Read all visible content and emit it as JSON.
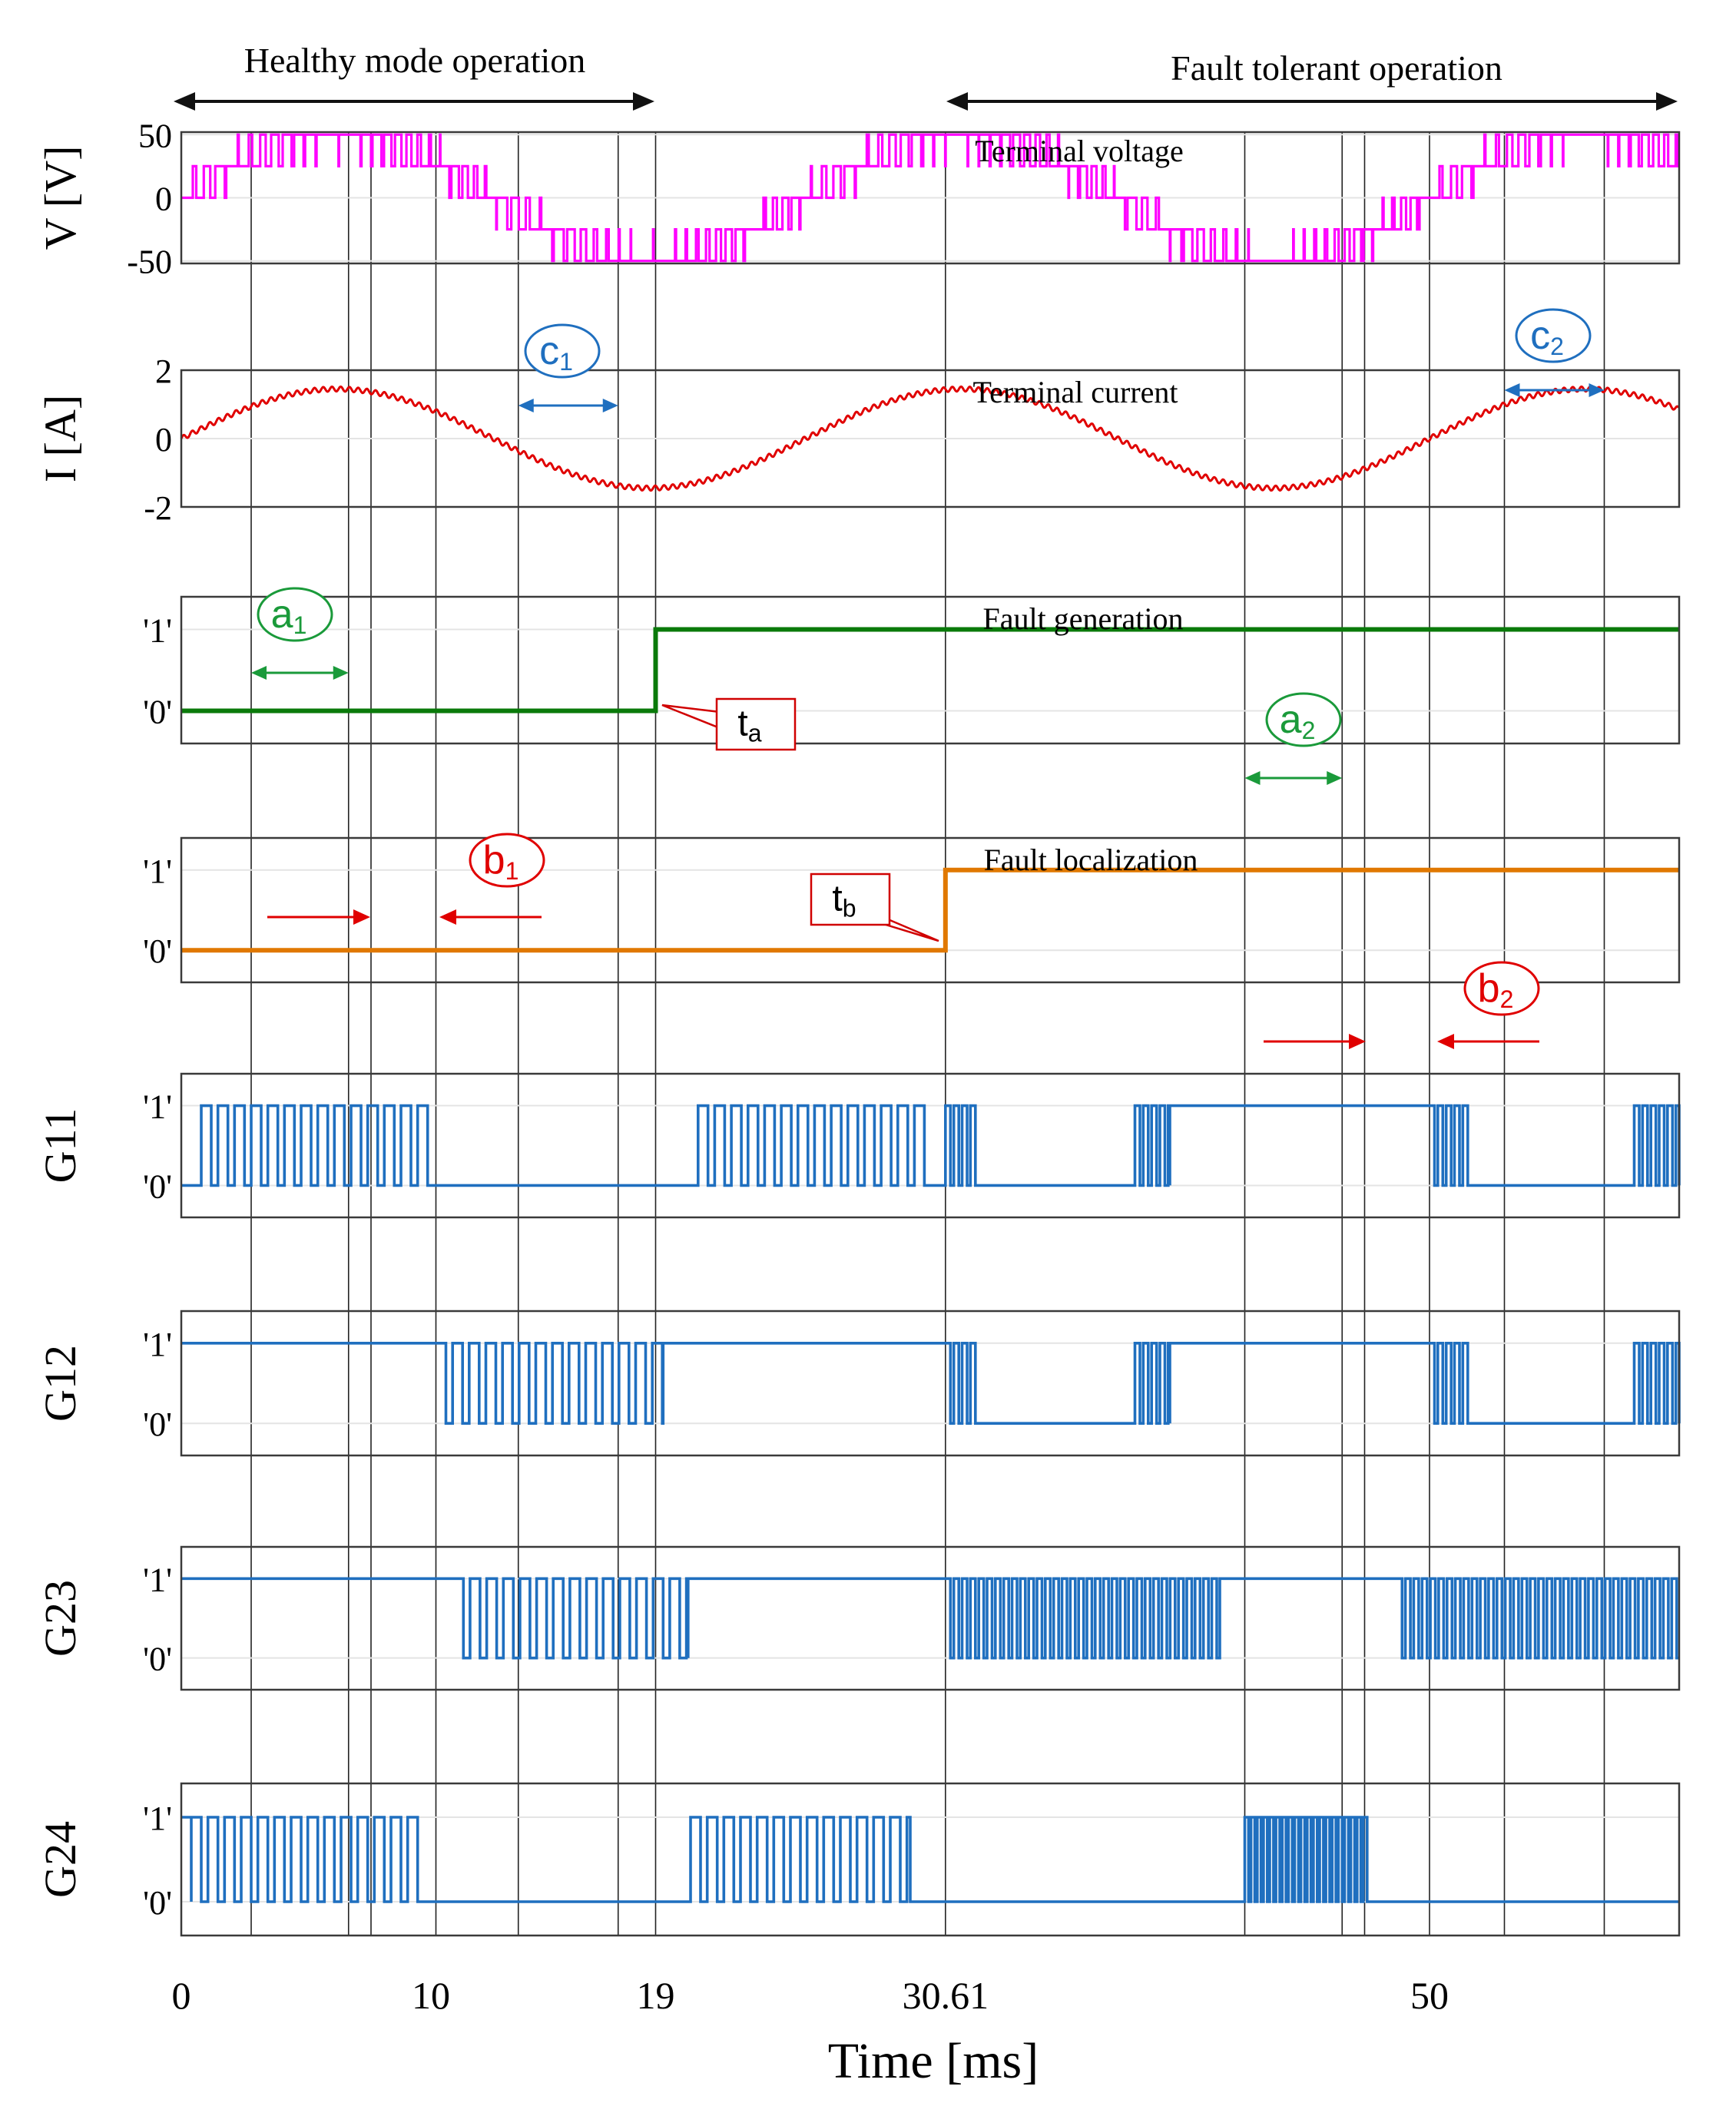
{
  "chart_data": {
    "type": "line",
    "xlabel": "Time [ms]",
    "xlim": [
      0,
      60
    ],
    "xticks": [
      0,
      10,
      19,
      30.61,
      50
    ],
    "xtick_labels": [
      "0",
      "10",
      "19",
      "30.61",
      "50"
    ],
    "vertical_markers_ms": [
      2.8,
      6.7,
      7.6,
      10.2,
      13.5,
      17.5,
      19,
      30.61,
      42.6,
      46.5,
      47.4,
      50,
      53,
      57
    ],
    "regions": [
      {
        "label": "Healthy mode operation",
        "from": 0,
        "to": 19
      },
      {
        "label": "Fault tolerant operation",
        "from": 30.61,
        "to": 60
      }
    ],
    "panels": [
      {
        "id": "voltage",
        "ylabel": "V [V]",
        "title": "Terminal voltage",
        "ylim": [
          -52,
          52
        ],
        "yticks": [
          50,
          0,
          -50
        ],
        "ytick_labels": [
          "50",
          "0",
          "-50"
        ],
        "color": "#ff00ff",
        "kind": "multilevel",
        "levels": [
          25,
          50
        ],
        "frequency_hz": 40,
        "amplitude_v": 50
      },
      {
        "id": "current",
        "ylabel": "I [A]",
        "title": "Terminal current",
        "ylim": [
          -2,
          2
        ],
        "yticks": [
          2,
          0,
          -2
        ],
        "ytick_labels": [
          "2",
          "0",
          "-2"
        ],
        "color": "#e00000",
        "kind": "sine",
        "amplitude_a": 1.45,
        "frequency_hz": 40,
        "ripple_a": 0.07
      },
      {
        "id": "fault_generation",
        "title": "Fault generation",
        "ylim": [
          -0.4,
          1.4
        ],
        "yticks": [
          1,
          0
        ],
        "ytick_labels": [
          "'1'",
          "'0'"
        ],
        "color": "#0a7a0a",
        "kind": "step",
        "step_time_ms": 19
      },
      {
        "id": "fault_localization",
        "title": "Fault localization",
        "ylim": [
          -0.4,
          1.4
        ],
        "yticks": [
          1,
          0
        ],
        "ytick_labels": [
          "'1'",
          "'0'"
        ],
        "color": "#e07800",
        "kind": "step",
        "step_time_ms": 30.61
      },
      {
        "id": "G11",
        "ylabel": "G11",
        "ylim": [
          -0.4,
          1.4
        ],
        "yticks": [
          1,
          0
        ],
        "ytick_labels": [
          "'1'",
          "'0'"
        ],
        "color": "#1f6fbf",
        "kind": "gate",
        "segments": [
          [
            0,
            0.8,
            0
          ],
          [
            0.8,
            10.1,
            1.5
          ],
          [
            10.1,
            20.7,
            0
          ],
          [
            20.7,
            29.8,
            1.5
          ],
          [
            29.8,
            30.61,
            0
          ],
          [
            30.61,
            31.9,
            3
          ],
          [
            31.9,
            38.2,
            0
          ],
          [
            38.2,
            39.6,
            3
          ],
          [
            39.6,
            50,
            1
          ],
          [
            50,
            51.6,
            3
          ],
          [
            51.6,
            58.2,
            0
          ],
          [
            58.2,
            60,
            3
          ]
        ]
      },
      {
        "id": "G12",
        "ylabel": "G12",
        "ylim": [
          -0.4,
          1.4
        ],
        "yticks": [
          1,
          0
        ],
        "ytick_labels": [
          "'1'",
          "'0'"
        ],
        "color": "#1f6fbf",
        "kind": "gate",
        "segments": [
          [
            0,
            10.2,
            1
          ],
          [
            10.2,
            19.3,
            1.5
          ],
          [
            19.3,
            30.61,
            1
          ],
          [
            30.61,
            31.9,
            3
          ],
          [
            31.9,
            38.2,
            0
          ],
          [
            38.2,
            39.6,
            3
          ],
          [
            39.6,
            50,
            1
          ],
          [
            50,
            51.6,
            3
          ],
          [
            51.6,
            58.2,
            0
          ],
          [
            58.2,
            60,
            3
          ]
        ]
      },
      {
        "id": "G23",
        "ylabel": "G23",
        "ylim": [
          -0.4,
          1.4
        ],
        "yticks": [
          1,
          0
        ],
        "ytick_labels": [
          "'1'",
          "'0'"
        ],
        "color": "#1f6fbf",
        "kind": "gate",
        "segments": [
          [
            0,
            10.9,
            1
          ],
          [
            10.9,
            20.3,
            1.5
          ],
          [
            20.3,
            30.61,
            1
          ],
          [
            30.61,
            41.6,
            3
          ],
          [
            41.6,
            48.7,
            1
          ],
          [
            48.7,
            60,
            3
          ]
        ]
      },
      {
        "id": "G24",
        "ylabel": "G24",
        "ylim": [
          -0.4,
          1.4
        ],
        "yticks": [
          1,
          0
        ],
        "ytick_labels": [
          "'1'",
          "'0'"
        ],
        "color": "#1f6fbf",
        "kind": "gate",
        "segments": [
          [
            0,
            0.4,
            1.5
          ],
          [
            0.4,
            9.6,
            1.5
          ],
          [
            9.6,
            20.4,
            0
          ],
          [
            20.4,
            29.2,
            1.5
          ],
          [
            29.2,
            42.6,
            0
          ],
          [
            42.6,
            47.6,
            4
          ],
          [
            47.6,
            60,
            0
          ]
        ]
      }
    ],
    "annotations": {
      "a1": {
        "main": "a",
        "sub": "1",
        "color": "#1a9a3a",
        "span_ms": [
          2.8,
          6.7
        ]
      },
      "a2": {
        "main": "a",
        "sub": "2",
        "color": "#1a9a3a",
        "span_ms": [
          42.6,
          46.5
        ]
      },
      "b1": {
        "main": "b",
        "sub": "1",
        "color": "#e00000"
      },
      "b2": {
        "main": "b",
        "sub": "2",
        "color": "#e00000"
      },
      "c1": {
        "main": "c",
        "sub": "1",
        "color": "#1f6fbf",
        "span_ms": [
          13.5,
          17.5
        ]
      },
      "c2": {
        "main": "c",
        "sub": "2",
        "color": "#1f6fbf",
        "span_ms": [
          53,
          57
        ]
      },
      "ta": {
        "main": "t",
        "sub": "a",
        "time_ms": 19
      },
      "tb": {
        "main": "t",
        "sub": "b",
        "time_ms": 30.61
      }
    }
  }
}
